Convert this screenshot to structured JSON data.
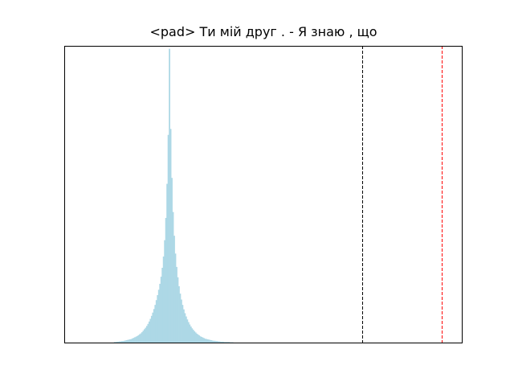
{
  "chart_data": {
    "type": "histogram",
    "title": "<pad> Ти мій друг . - Я знаю , що",
    "xlabel": "",
    "ylabel": "",
    "x_ticks_visible": false,
    "y_ticks_visible": false,
    "grid": false,
    "xlim": [
      -5.5,
      14.5
    ],
    "ylim": [
      0,
      1.0
    ],
    "bar_color": "#add8e6",
    "bins": {
      "x_start": -3.0,
      "bin_width": 0.06,
      "heights": [
        0.002,
        0.002,
        0.003,
        0.003,
        0.004,
        0.004,
        0.005,
        0.005,
        0.006,
        0.007,
        0.008,
        0.009,
        0.01,
        0.011,
        0.012,
        0.014,
        0.016,
        0.018,
        0.02,
        0.022,
        0.025,
        0.028,
        0.031,
        0.035,
        0.04,
        0.045,
        0.05,
        0.056,
        0.063,
        0.071,
        0.08,
        0.09,
        0.101,
        0.113,
        0.127,
        0.143,
        0.16,
        0.178,
        0.198,
        0.222,
        0.252,
        0.29,
        0.345,
        0.42,
        0.535,
        0.7,
        0.99,
        0.72,
        0.555,
        0.44,
        0.36,
        0.3,
        0.255,
        0.22,
        0.19,
        0.165,
        0.145,
        0.127,
        0.112,
        0.099,
        0.088,
        0.078,
        0.069,
        0.061,
        0.054,
        0.048,
        0.043,
        0.038,
        0.034,
        0.03,
        0.027,
        0.024,
        0.021,
        0.019,
        0.017,
        0.015,
        0.013,
        0.012,
        0.011,
        0.01,
        0.009,
        0.008,
        0.007,
        0.006,
        0.006,
        0.005,
        0.005,
        0.004,
        0.004,
        0.003,
        0.003,
        0.003,
        0.002,
        0.002,
        0.002,
        0.002,
        0.002,
        0.001,
        0.001,
        0.001
      ]
    },
    "reference_lines": [
      {
        "x": 9.5,
        "color": "#000000",
        "style": "dashed"
      },
      {
        "x": 13.5,
        "color": "#ff0000",
        "style": "dashed"
      }
    ]
  }
}
